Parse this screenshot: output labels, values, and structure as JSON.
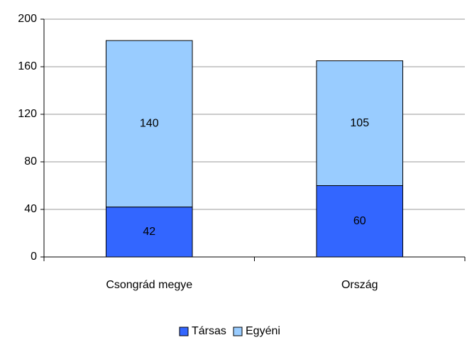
{
  "chart_data": {
    "type": "stacked-bar",
    "categories": [
      "Csongrád megye",
      "Ország"
    ],
    "series": [
      {
        "name": "Társas",
        "color": "#3366ff",
        "values": [
          42,
          60
        ]
      },
      {
        "name": "Egyéni",
        "color": "#99ccff",
        "values": [
          140,
          105
        ]
      }
    ],
    "ylim": [
      0,
      200
    ],
    "yticks": [
      0,
      40,
      80,
      120,
      160,
      200
    ],
    "grid": true,
    "legend": "bottom"
  }
}
